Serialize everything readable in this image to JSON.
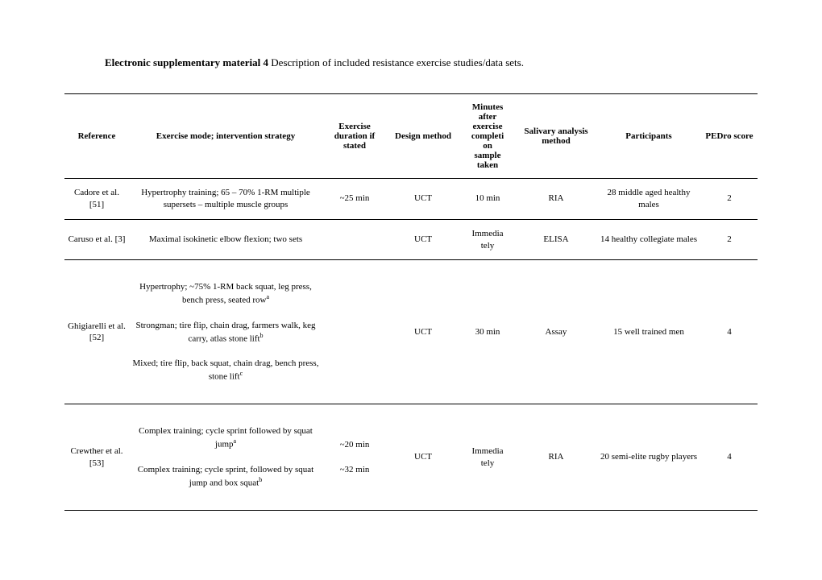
{
  "title": {
    "bold": "Electronic supplementary material 4",
    "rest": " Description of included resistance exercise studies/data sets."
  },
  "headers": {
    "ref": "Reference",
    "mode": "Exercise mode; intervention strategy",
    "dur": "Exercise duration if stated",
    "design": "Design method",
    "min": "Minutes after exercise completion sample taken",
    "sal": "Salivary analysis method",
    "part": "Participants",
    "pedro": "PEDro score"
  },
  "rows": [
    {
      "ref": "Cadore et al. [51]",
      "mode": "Hypertrophy training; 65 – 70% 1-RM multiple supersets – multiple muscle groups",
      "dur": "~25 min",
      "design": "UCT",
      "min": "10 min",
      "sal": "RIA",
      "part": "28 middle aged healthy males",
      "pedro": "2"
    },
    {
      "ref": "Caruso et al. [3]",
      "mode": "Maximal isokinetic elbow flexion; two sets",
      "dur": "",
      "design": "UCT",
      "min": "Immediately",
      "sal": "ELISA",
      "part": "14 healthy collegiate males",
      "pedro": "2"
    },
    {
      "ref": "Ghigiarelli et al. [52]",
      "mode_a": "Hypertrophy; ~75% 1-RM back squat, leg press, bench press, seated row",
      "mode_b": "Strongman; tire flip, chain drag, farmers walk, keg carry, atlas stone lift",
      "mode_c": "Mixed; tire flip, back squat, chain drag, bench press, stone lift",
      "dur": "",
      "design": "UCT",
      "min": "30 min",
      "sal": "Assay",
      "part": "15 well trained men",
      "pedro": "4"
    },
    {
      "ref": "Crewther et al. [53]",
      "mode_a": "Complex training; cycle sprint followed by squat jump",
      "mode_b": "Complex training; cycle sprint, followed by squat jump and box squat",
      "dur_a": "~20 min",
      "dur_b": "~32 min",
      "design": "UCT",
      "min": "Immediately",
      "sal": "RIA",
      "part": "20 semi-elite rugby players",
      "pedro": "4"
    }
  ]
}
